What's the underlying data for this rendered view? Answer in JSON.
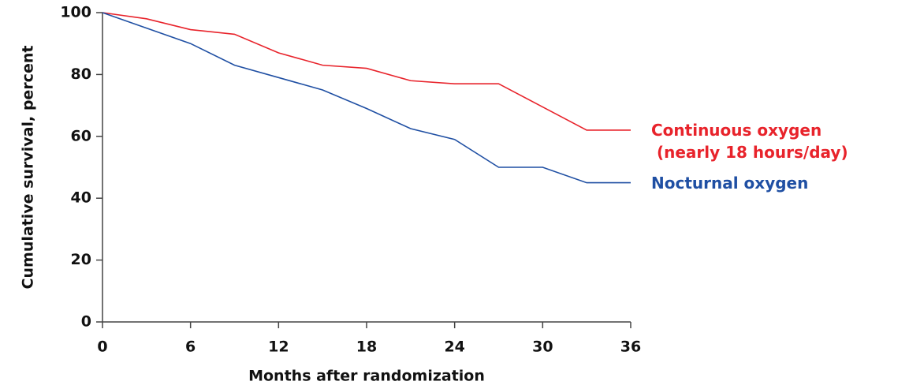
{
  "chart_data": {
    "type": "line",
    "xlabel": "Months after randomization",
    "ylabel": "Cumulative survival, percent",
    "x": [
      0,
      3,
      6,
      9,
      12,
      15,
      18,
      21,
      24,
      27,
      30,
      33,
      36
    ],
    "series": [
      {
        "name": "Continuous oxygen\n (nearly 18 hours/day)",
        "color": "#e8232b",
        "values": [
          100,
          98,
          94.5,
          93,
          87,
          83,
          82,
          78,
          77,
          77,
          69.5,
          62,
          62
        ]
      },
      {
        "name": "Nocturnal oxygen",
        "color": "#1f4fa3",
        "values": [
          100,
          95,
          90,
          83,
          79,
          75,
          69,
          62.5,
          59,
          50,
          50,
          45,
          45
        ]
      }
    ],
    "xlim": [
      0,
      36
    ],
    "xticks": [
      0,
      6,
      12,
      18,
      24,
      30,
      36
    ],
    "ylim": [
      0,
      100
    ],
    "yticks": [
      0,
      20,
      40,
      60,
      80,
      100
    ]
  }
}
